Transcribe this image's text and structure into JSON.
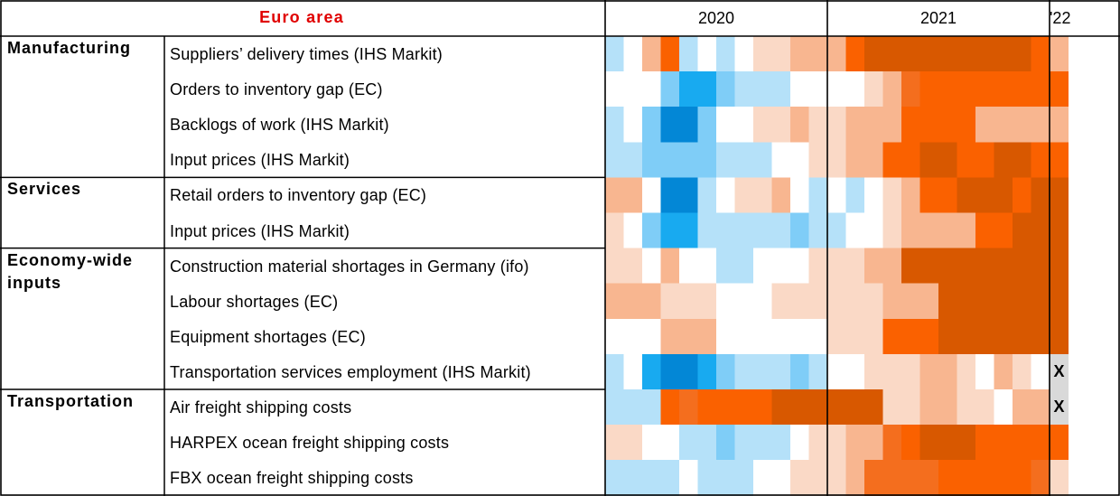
{
  "chart_data": {
    "type": "heatmap",
    "title": "Euro area",
    "title_color": "#e00000",
    "periods": [
      {
        "label": "2020",
        "start": "2020-01",
        "end": "2020-12"
      },
      {
        "label": "2021",
        "start": "2021-01",
        "end": "2021-12"
      },
      {
        "label": "'22",
        "start": "2022-01",
        "end": "2022-01"
      }
    ],
    "months": [
      "2020-01",
      "2020-02",
      "2020-03",
      "2020-04",
      "2020-05",
      "2020-06",
      "2020-07",
      "2020-08",
      "2020-09",
      "2020-10",
      "2020-11",
      "2020-12",
      "2021-01",
      "2021-02",
      "2021-03",
      "2021-04",
      "2021-05",
      "2021-06",
      "2021-07",
      "2021-08",
      "2021-09",
      "2021-10",
      "2021-11",
      "2021-12",
      "2022-01"
    ],
    "color_scale": {
      "-4": "#0387d6",
      "-3": "#18aaf0",
      "-2": "#7fcdf7",
      "-1": "#b5e1f9",
      "0": "#ffffff",
      "1": "#fad9c6",
      "2": "#f8b690",
      "3": "#f46e1e",
      "4": "#fa6100",
      "5": "#d85800",
      "na": "#d9d9d9"
    },
    "groups": [
      {
        "name": "Manufacturing",
        "rows": [
          0,
          1,
          2,
          3
        ]
      },
      {
        "name": "Services",
        "rows": [
          4,
          5
        ]
      },
      {
        "name": "Economy-wide inputs",
        "rows": [
          6,
          7,
          8,
          9
        ]
      },
      {
        "name": "Transportation",
        "rows": [
          10,
          11,
          12
        ]
      }
    ],
    "rows": [
      {
        "label": "Suppliers’ delivery times (IHS Markit)",
        "values": [
          -1,
          0,
          2,
          4,
          -1,
          0,
          -1,
          0,
          1,
          1,
          2,
          2,
          2,
          4,
          5,
          5,
          5,
          5,
          5,
          5,
          5,
          5,
          5,
          4,
          2
        ]
      },
      {
        "label": "Orders to inventory gap (EC)",
        "values": [
          0,
          0,
          0,
          -2,
          -3,
          -3,
          -2,
          -1,
          -1,
          -1,
          0,
          0,
          0,
          0,
          1,
          2,
          3,
          4,
          4,
          4,
          4,
          4,
          4,
          4,
          4
        ]
      },
      {
        "label": "Backlogs of work (IHS Markit)",
        "values": [
          -1,
          0,
          -2,
          -4,
          -4,
          -2,
          0,
          0,
          1,
          1,
          2,
          1,
          1,
          2,
          2,
          2,
          4,
          4,
          4,
          4,
          2,
          2,
          2,
          2,
          2
        ]
      },
      {
        "label": "Input prices (IHS Markit)",
        "values": [
          -1,
          -1,
          -2,
          -2,
          -2,
          -2,
          -1,
          -1,
          -1,
          0,
          0,
          1,
          1,
          2,
          2,
          4,
          4,
          5,
          5,
          4,
          4,
          5,
          5,
          4,
          4
        ]
      },
      {
        "label": "Retail orders to inventory gap (EC)",
        "values": [
          2,
          2,
          0,
          -4,
          -4,
          -1,
          0,
          1,
          1,
          2,
          0,
          -1,
          0,
          -1,
          0,
          1,
          2,
          4,
          4,
          5,
          5,
          5,
          4,
          5,
          5
        ]
      },
      {
        "label": "Input prices (IHS Markit)",
        "values": [
          1,
          0,
          -2,
          -3,
          -3,
          -1,
          -1,
          -1,
          -1,
          -1,
          -2,
          -1,
          -1,
          0,
          0,
          1,
          2,
          2,
          2,
          2,
          4,
          4,
          5,
          5,
          5
        ]
      },
      {
        "label": "Construction material shortages in Germany (ifo)",
        "values": [
          1,
          1,
          0,
          2,
          0,
          0,
          -1,
          -1,
          0,
          0,
          0,
          1,
          1,
          1,
          2,
          2,
          5,
          5,
          5,
          5,
          5,
          5,
          5,
          5,
          5
        ]
      },
      {
        "label": "Labour shortages (EC)",
        "values": [
          2,
          2,
          2,
          1,
          1,
          1,
          0,
          0,
          0,
          1,
          1,
          1,
          1,
          1,
          1,
          2,
          2,
          2,
          5,
          5,
          5,
          5,
          5,
          5,
          5
        ]
      },
      {
        "label": "Equipment shortages (EC)",
        "values": [
          0,
          0,
          0,
          2,
          2,
          2,
          0,
          0,
          0,
          0,
          0,
          0,
          1,
          1,
          1,
          4,
          4,
          4,
          5,
          5,
          5,
          5,
          5,
          5,
          5
        ]
      },
      {
        "label": "Transportation services employment (IHS Markit)",
        "values": [
          -1,
          0,
          -3,
          -4,
          -4,
          -3,
          -2,
          -1,
          -1,
          -1,
          -2,
          -1,
          0,
          0,
          1,
          1,
          1,
          2,
          2,
          1,
          0,
          2,
          1,
          0,
          null
        ]
      },
      {
        "label": "Air freight shipping costs",
        "values": [
          -1,
          -1,
          -1,
          4,
          3,
          4,
          4,
          4,
          4,
          5,
          5,
          5,
          5,
          5,
          5,
          1,
          1,
          2,
          2,
          1,
          1,
          0,
          2,
          2,
          null
        ]
      },
      {
        "label": "HARPEX ocean freight shipping costs",
        "values": [
          1,
          1,
          0,
          0,
          -1,
          -1,
          -2,
          -1,
          -1,
          -1,
          0,
          1,
          1,
          2,
          2,
          3,
          4,
          5,
          5,
          5,
          4,
          4,
          4,
          4,
          4
        ]
      },
      {
        "label": "FBX ocean freight shipping costs",
        "values": [
          -1,
          -1,
          -1,
          -1,
          0,
          -1,
          -1,
          -1,
          0,
          0,
          1,
          1,
          1,
          2,
          3,
          3,
          3,
          3,
          4,
          4,
          4,
          4,
          4,
          3,
          1
        ]
      }
    ],
    "missing_marker": "X"
  }
}
